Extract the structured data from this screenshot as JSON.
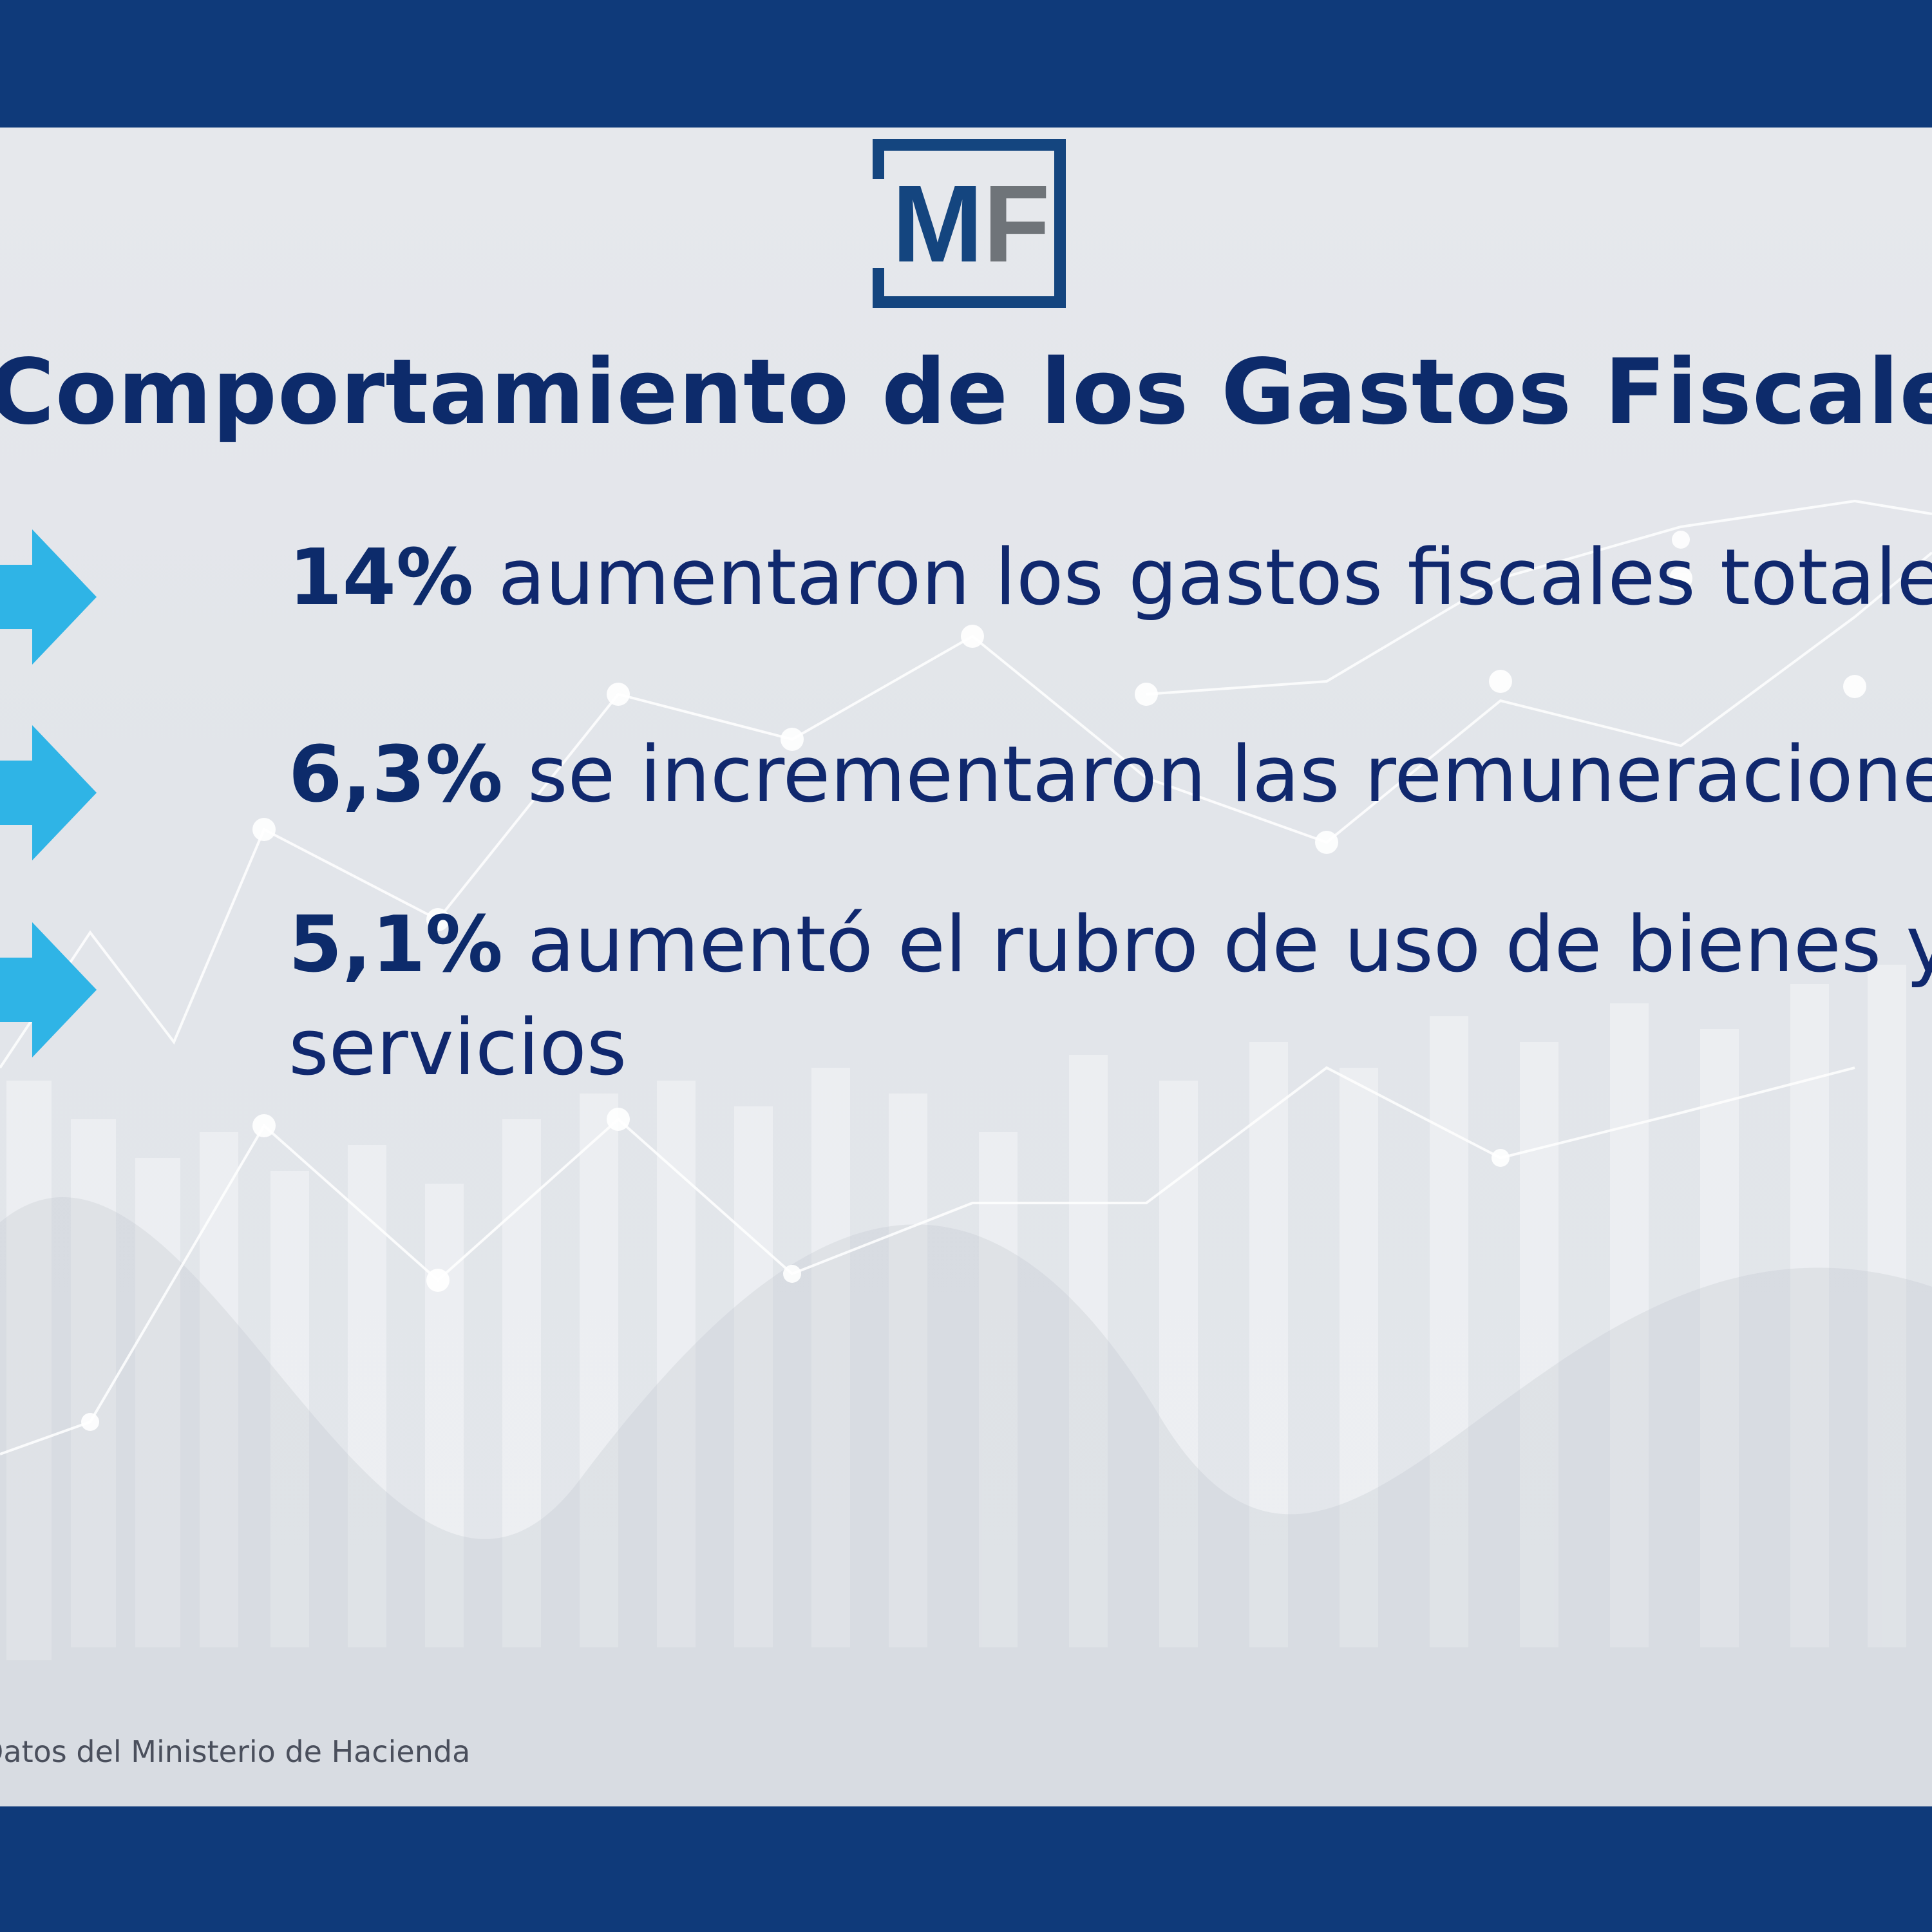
{
  "logo": {
    "letters": "MF"
  },
  "title": "Comportamiento de los Gastos Fiscales",
  "bullets": [
    {
      "pct": "14%",
      "text": " aumentaron los gastos fiscales totales"
    },
    {
      "pct": "6,3%",
      "text": " se incrementaron las remuneraciones"
    },
    {
      "pct": "5,1%",
      "text": "  aumentó el rubro de uso de bienes y",
      "text2": "servicios"
    }
  ],
  "source": "Datos del Ministerio de Hacienda",
  "colors": {
    "band": "#0f3a7a",
    "title": "#0d2b6b",
    "arrow": "#2fb4e6",
    "logo_frame": "#14457f",
    "logo_f": "#6f7479"
  }
}
